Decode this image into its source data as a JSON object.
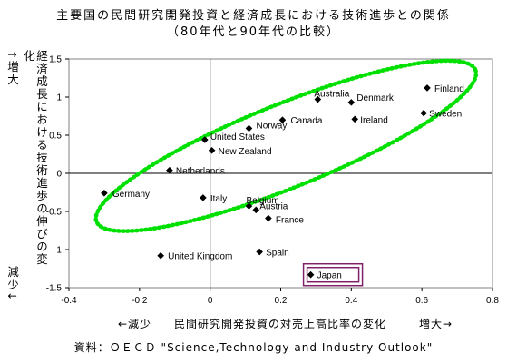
{
  "chart_data": {
    "type": "scatter",
    "title": "主要国の民間研究開発投資と経済成長における技術進歩との関係",
    "subtitle": "（80年代と90年代の比較）",
    "ylabel": "経済成長における技術進歩の伸びの変化",
    "ylabel_up": "↑増大",
    "ylabel_down": "減少↓",
    "xlabel": "民間研究開発投資の対売上高比率の変化",
    "xlabel_left": "←減少",
    "xlabel_right": "増大→",
    "source": "資料：ＯＥＣＤ \"Science,Technology and Industry Outlook\"",
    "xlim": [
      -0.4,
      0.8
    ],
    "ylim": [
      -1.5,
      1.5
    ],
    "x_ticks": [
      "-0.4",
      "-0.2",
      "0",
      "0.2",
      "0.4",
      "0.6",
      "0.8"
    ],
    "y_ticks": [
      "1.5",
      "1",
      "0.5",
      "0",
      "-0.5",
      "-1",
      "-1.5"
    ],
    "grid": false,
    "points": [
      {
        "label": "Finland",
        "x": 0.615,
        "y": 1.12
      },
      {
        "label": "Australia",
        "x": 0.305,
        "y": 0.97
      },
      {
        "label": "Denmark",
        "x": 0.4,
        "y": 0.93
      },
      {
        "label": "Sweden",
        "x": 0.605,
        "y": 0.79
      },
      {
        "label": "Ireland",
        "x": 0.41,
        "y": 0.71
      },
      {
        "label": "Canada",
        "x": 0.205,
        "y": 0.7
      },
      {
        "label": "Norway",
        "x": 0.11,
        "y": 0.59
      },
      {
        "label": "United States",
        "x": -0.015,
        "y": 0.44
      },
      {
        "label": "New Zealand",
        "x": 0.005,
        "y": 0.3
      },
      {
        "label": "Netherlands",
        "x": -0.115,
        "y": 0.04
      },
      {
        "label": "Germany",
        "x": -0.3,
        "y": -0.26
      },
      {
        "label": "Italy",
        "x": -0.02,
        "y": -0.32
      },
      {
        "label": "Belgium",
        "x": 0.11,
        "y": -0.43
      },
      {
        "label": "Austria",
        "x": 0.13,
        "y": -0.48
      },
      {
        "label": "France",
        "x": 0.165,
        "y": -0.59
      },
      {
        "label": "Spain",
        "x": 0.14,
        "y": -1.03
      },
      {
        "label": "United Kingdom",
        "x": -0.14,
        "y": -1.08
      },
      {
        "label": "Japan",
        "x": 0.285,
        "y": -1.33
      }
    ],
    "highlight": "Japan",
    "annotation": "dotted green ellipse enclosing most countries",
    "colors": {
      "marker": "#000000",
      "ellipse": "#00e000",
      "highlight_box": "#80206a"
    }
  }
}
